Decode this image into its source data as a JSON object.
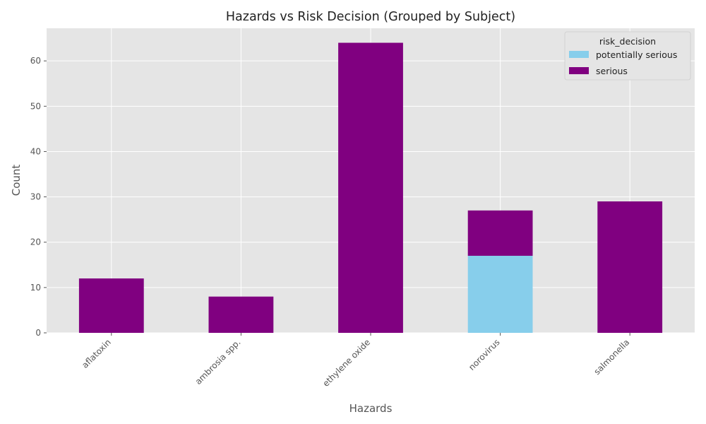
{
  "chart_data": {
    "type": "bar",
    "stacked": true,
    "title": "Hazards vs Risk Decision (Grouped by Subject)",
    "xlabel": "Hazards",
    "ylabel": "Count",
    "categories": [
      "aflatoxin",
      "ambrosia spp.",
      "ethylene oxide",
      "norovirus",
      "salmonella"
    ],
    "series": [
      {
        "name": "potentially serious",
        "color": "#87ceeb",
        "values": [
          0,
          0,
          0,
          17,
          0
        ]
      },
      {
        "name": "serious",
        "color": "#800080",
        "values": [
          12,
          8,
          64,
          10,
          29
        ]
      }
    ],
    "ylim": [
      0,
      67.2
    ],
    "yticks": [
      "0",
      "10",
      "20",
      "30",
      "40",
      "50",
      "60"
    ],
    "legend": {
      "title": "risk_decision",
      "position": "top-right"
    },
    "grid": true,
    "style": {
      "background": "#e5e5e5",
      "grid_color": "#ffffff"
    }
  }
}
